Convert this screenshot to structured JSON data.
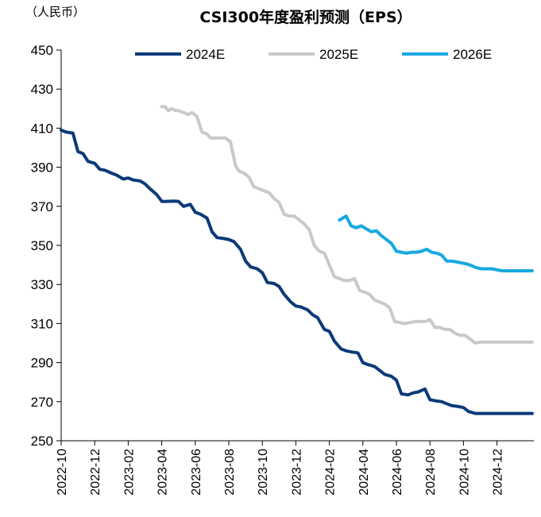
{
  "chart_data": {
    "type": "line",
    "title": "CSI300年度盈利预测（EPS）",
    "unit_label": "（人民币）",
    "xlabel": "",
    "ylabel": "",
    "ylim": [
      250,
      450
    ],
    "yticks": [
      250,
      270,
      290,
      310,
      330,
      350,
      370,
      390,
      410,
      430,
      450
    ],
    "x_tick_labels": [
      "2022-10",
      "2022-12",
      "2023-02",
      "2023-04",
      "2023-06",
      "2023-08",
      "2023-10",
      "2023-12",
      "2024-02",
      "2024-04",
      "2024-06",
      "2024-08",
      "2024-10",
      "2024-12"
    ],
    "x_unit": "months since 2022-10",
    "xlim": [
      0,
      28.2
    ],
    "legend_position": "top",
    "series": [
      {
        "name": "2024E",
        "color": "#0b3a78",
        "x": [
          0,
          0.3,
          0.7,
          1.0,
          1.3,
          1.6,
          2.0,
          2.3,
          2.6,
          3.0,
          3.3,
          3.7,
          4.0,
          4.3,
          4.7,
          5.0,
          5.3,
          5.7,
          6.0,
          6.3,
          6.7,
          7.0,
          7.3,
          7.7,
          8.0,
          8.3,
          8.7,
          9.0,
          9.3,
          9.7,
          10.0,
          10.3,
          10.7,
          11.0,
          11.3,
          11.7,
          12.0,
          12.3,
          12.7,
          13.0,
          13.3,
          13.7,
          14.0,
          14.3,
          14.7,
          15.0,
          15.3,
          15.7,
          16.0,
          16.3,
          16.7,
          17.0,
          17.3,
          17.7,
          18.0,
          18.3,
          18.7,
          19.0,
          19.3,
          19.7,
          20.0,
          20.3,
          20.7,
          21.0,
          21.3,
          21.7,
          22.0,
          22.3,
          22.7,
          23.0,
          23.3,
          23.7,
          24.0,
          24.3,
          24.7,
          25.0,
          25.3,
          25.7,
          26.0,
          26.3,
          26.7,
          27.0,
          27.3,
          27.7,
          28.1
        ],
        "values": [
          409,
          408,
          407.5,
          398,
          397,
          393,
          392,
          389,
          388.5,
          387,
          386,
          384,
          384.5,
          383.5,
          383,
          381.5,
          379,
          376,
          372.5,
          372.5,
          372.7,
          372.5,
          370,
          371,
          367,
          366,
          364,
          357,
          354,
          353.5,
          353,
          352,
          348,
          342,
          339,
          338,
          336,
          331,
          330.5,
          329,
          325,
          321,
          319,
          318.5,
          317,
          314.5,
          313,
          307,
          306,
          301,
          297,
          296,
          295.5,
          295,
          290,
          289,
          288,
          286,
          284,
          283,
          281,
          274,
          273.5,
          274.5,
          275,
          276.5,
          271,
          270.5,
          270,
          269,
          268,
          267.5,
          267,
          265,
          264,
          264,
          264,
          264,
          264,
          264,
          264,
          264,
          264,
          264,
          264
        ]
      },
      {
        "name": "2025E",
        "color": "#c9c9c9",
        "x": [
          6.0,
          6.2,
          6.4,
          6.6,
          6.8,
          7.0,
          7.3,
          7.6,
          7.8,
          8.1,
          8.4,
          8.7,
          8.9,
          9.2,
          9.5,
          9.8,
          10.1,
          10.4,
          10.6,
          10.9,
          11.2,
          11.5,
          11.8,
          12.1,
          12.4,
          12.7,
          13.0,
          13.3,
          13.6,
          13.9,
          14.2,
          14.5,
          14.8,
          15.1,
          15.4,
          15.7,
          16.0,
          16.3,
          16.6,
          16.9,
          17.2,
          17.5,
          17.8,
          18.1,
          18.4,
          18.7,
          19.0,
          19.3,
          19.6,
          19.9,
          20.2,
          20.5,
          20.8,
          21.1,
          21.4,
          21.7,
          22.0,
          22.3,
          22.6,
          22.9,
          23.2,
          23.5,
          23.8,
          24.1,
          24.4,
          24.7,
          25.0,
          25.3,
          25.6,
          25.9,
          26.2,
          26.5,
          26.8,
          27.1,
          27.4,
          27.7,
          28.1
        ],
        "values": [
          421,
          421,
          419,
          420,
          419,
          419,
          418,
          417,
          418,
          416,
          408,
          407,
          405,
          405,
          405,
          405,
          403,
          391,
          388,
          387,
          385,
          380,
          379,
          378,
          377,
          374,
          372,
          366,
          365,
          365,
          363,
          361,
          358,
          350,
          347,
          346,
          340,
          334,
          333,
          332,
          332,
          333,
          327,
          326,
          325,
          322,
          321,
          320,
          318,
          311,
          310.5,
          310,
          310.5,
          311,
          311,
          311,
          312,
          308,
          308,
          307,
          307,
          305,
          304,
          304,
          302,
          300,
          300.5,
          300.5,
          300.5,
          300.5,
          300.5,
          300.5,
          300.5,
          300.5,
          300.5,
          300.5,
          300.5
        ]
      },
      {
        "name": "2026E",
        "color": "#18a8e0",
        "x": [
          16.6,
          16.8,
          17.0,
          17.3,
          17.6,
          17.9,
          18.2,
          18.5,
          18.8,
          19.1,
          19.4,
          19.7,
          20.0,
          20.3,
          20.6,
          20.9,
          21.2,
          21.5,
          21.8,
          22.1,
          22.4,
          22.7,
          23.0,
          23.3,
          23.6,
          23.9,
          24.2,
          24.5,
          24.8,
          25.1,
          25.4,
          25.7,
          26.0,
          26.3,
          26.6,
          26.9,
          27.2,
          27.5,
          27.8,
          28.1
        ],
        "values": [
          363,
          364,
          365,
          360,
          359,
          360,
          358.5,
          357,
          357.5,
          355,
          353,
          351,
          347,
          346.5,
          346,
          346.5,
          346.5,
          347,
          348,
          346.5,
          346,
          345,
          342,
          342,
          341.5,
          341,
          340.5,
          339.5,
          338.5,
          338,
          338,
          338,
          337.5,
          337,
          337,
          337,
          337,
          337,
          337,
          337
        ]
      }
    ]
  }
}
